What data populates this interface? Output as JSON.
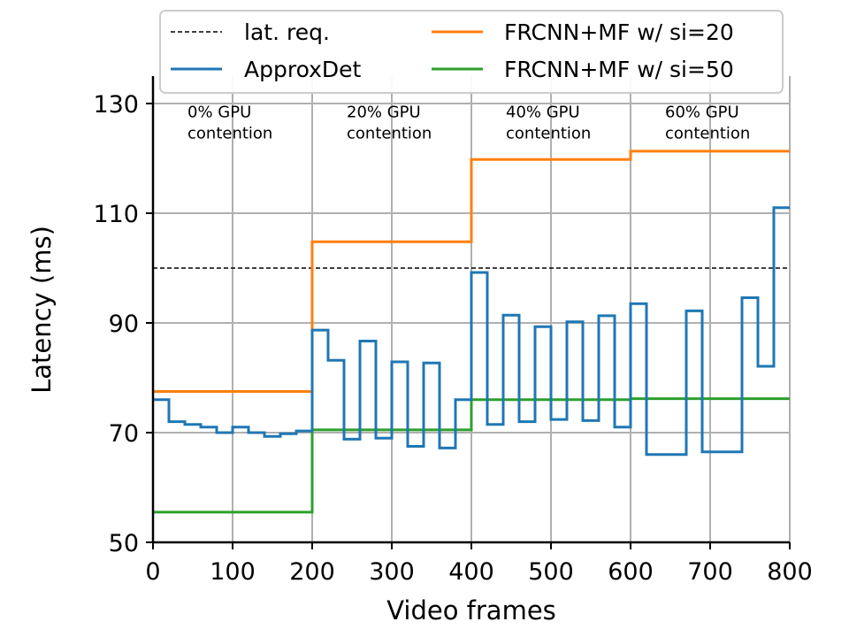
{
  "chart_data": {
    "type": "line",
    "title": "",
    "xlabel": "Video frames",
    "ylabel": "Latency (ms)",
    "xlim": [
      0,
      800
    ],
    "ylim": [
      50,
      135
    ],
    "xticks": [
      0,
      100,
      200,
      300,
      400,
      500,
      600,
      700,
      800
    ],
    "xtick_labels": [
      "0",
      "100",
      "200",
      "300",
      "400",
      "500",
      "600",
      "700",
      "800"
    ],
    "yticks": [
      50,
      70,
      90,
      110,
      130
    ],
    "ytick_labels": [
      "50",
      "70",
      "90",
      "110",
      "130"
    ],
    "grid": true,
    "legend_position": "top",
    "colors": {
      "approxdet": "#1f77b4",
      "frcnn20": "#ff7f0e",
      "frcnn50": "#2ca02c",
      "latreq": "#000000",
      "grid": "#b0b0b0"
    },
    "legend": [
      {
        "key": "latreq",
        "label": "lat. req.",
        "style": "dashed"
      },
      {
        "key": "approxdet",
        "label": "ApproxDet",
        "style": "solid"
      },
      {
        "key": "frcnn20",
        "label": "FRCNN+MF w/ si=20",
        "style": "solid"
      },
      {
        "key": "frcnn50",
        "label": "FRCNN+MF w/ si=50",
        "style": "solid"
      }
    ],
    "annotations": [
      {
        "x": 50,
        "y": 128.5,
        "line1": "0% GPU",
        "line2": "contention"
      },
      {
        "x": 250,
        "y": 128.5,
        "line1": "20% GPU",
        "line2": "contention"
      },
      {
        "x": 450,
        "y": 128.5,
        "line1": "40% GPU",
        "line2": "contention"
      },
      {
        "x": 650,
        "y": 128.5,
        "line1": "60% GPU",
        "line2": "contention"
      }
    ],
    "series": [
      {
        "key": "latreq",
        "name": "lat. req.",
        "step": false,
        "x": [
          0,
          800
        ],
        "values": [
          100,
          100
        ]
      },
      {
        "key": "frcnn20",
        "name": "FRCNN+MF w/ si=20",
        "step": true,
        "x": [
          0,
          200,
          200,
          400,
          400,
          600,
          600,
          800
        ],
        "values": [
          77.5,
          77.5,
          104.8,
          104.8,
          119.8,
          119.8,
          121.3,
          121.3
        ]
      },
      {
        "key": "frcnn50",
        "name": "FRCNN+MF w/ si=50",
        "step": true,
        "x": [
          0,
          200,
          200,
          400,
          400,
          600,
          600,
          800
        ],
        "values": [
          55.5,
          55.5,
          70.5,
          70.5,
          76.0,
          76.0,
          76.2,
          76.2
        ]
      },
      {
        "key": "approxdet",
        "name": "ApproxDet",
        "step": true,
        "x": [
          0,
          20,
          20,
          40,
          40,
          60,
          60,
          80,
          80,
          100,
          100,
          120,
          120,
          140,
          140,
          160,
          160,
          180,
          180,
          200,
          200,
          220,
          220,
          240,
          240,
          260,
          260,
          280,
          280,
          300,
          300,
          320,
          320,
          340,
          340,
          360,
          360,
          380,
          380,
          400,
          400,
          420,
          420,
          440,
          440,
          460,
          460,
          480,
          480,
          500,
          500,
          520,
          520,
          540,
          540,
          560,
          560,
          580,
          580,
          600,
          600,
          620,
          620,
          640,
          640,
          670,
          670,
          690,
          690,
          720,
          720,
          740,
          740,
          760,
          760,
          780,
          780,
          800
        ],
        "values": [
          76.0,
          76.0,
          72.0,
          72.0,
          71.5,
          71.5,
          71.0,
          71.0,
          70.0,
          70.0,
          71.0,
          71.0,
          70.0,
          70.0,
          69.3,
          69.3,
          69.8,
          69.8,
          70.3,
          70.3,
          88.7,
          88.7,
          83.2,
          83.2,
          68.8,
          68.8,
          86.7,
          86.7,
          69.0,
          69.0,
          82.9,
          82.9,
          67.5,
          67.5,
          82.7,
          82.7,
          67.2,
          67.2,
          76.0,
          76.0,
          99.2,
          99.2,
          71.5,
          71.5,
          91.4,
          91.4,
          72.0,
          72.0,
          89.3,
          89.3,
          72.4,
          72.4,
          90.2,
          90.2,
          72.2,
          72.2,
          91.3,
          91.3,
          71.0,
          71.0,
          93.5,
          93.5,
          66.0,
          66.0,
          66.0,
          66.0,
          92.2,
          92.2,
          66.5,
          66.5,
          66.5,
          66.5,
          94.6,
          94.6,
          82.1,
          82.1,
          111.0,
          111.0
        ]
      }
    ]
  }
}
